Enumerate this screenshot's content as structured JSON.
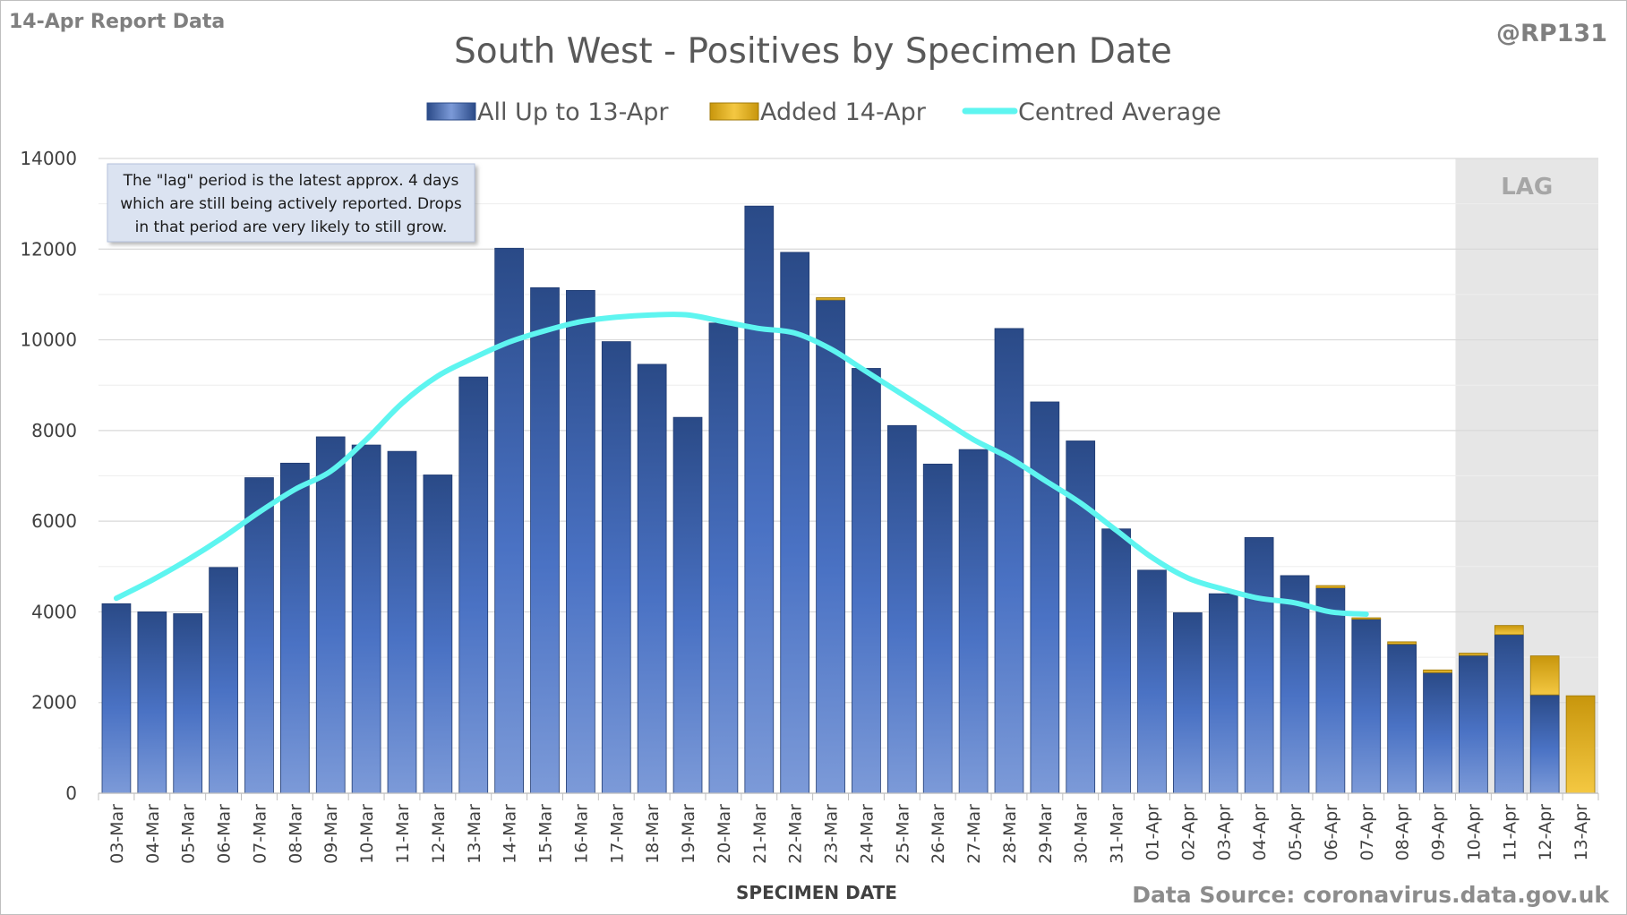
{
  "header": {
    "report_label": "14-Apr Report Data",
    "handle": "@RP131"
  },
  "footer": {
    "source": "Data Source: coronavirus.data.gov.uk"
  },
  "annotation": {
    "lines": [
      "The \"lag\" period is the latest approx. 4 days",
      "which are still being actively reported.  Drops",
      "in that period are very likely to still grow."
    ]
  },
  "lag_label": "LAG",
  "colors": {
    "bar_top": "#2a4a87",
    "bar_bottom": "#7c9ad8",
    "added_top": "#c8960c",
    "added_bottom": "#f4c842",
    "average_line": "#5ef5f0",
    "lag_band": "#e6e6e6",
    "grid": "#d9d9d9"
  },
  "chart_data": {
    "type": "bar",
    "title": "South West - Positives by Specimen Date",
    "xlabel": "SPECIMEN DATE",
    "ylabel": "",
    "ylim": [
      0,
      14000
    ],
    "yticks": [
      0,
      2000,
      4000,
      6000,
      8000,
      10000,
      12000,
      14000
    ],
    "grid": true,
    "legend_position": "top-center",
    "stacked": true,
    "categories": [
      "03-Mar",
      "04-Mar",
      "05-Mar",
      "06-Mar",
      "07-Mar",
      "08-Mar",
      "09-Mar",
      "10-Mar",
      "11-Mar",
      "12-Mar",
      "13-Mar",
      "14-Mar",
      "15-Mar",
      "16-Mar",
      "17-Mar",
      "18-Mar",
      "19-Mar",
      "20-Mar",
      "21-Mar",
      "22-Mar",
      "23-Mar",
      "24-Mar",
      "25-Mar",
      "26-Mar",
      "27-Mar",
      "28-Mar",
      "29-Mar",
      "30-Mar",
      "31-Mar",
      "01-Apr",
      "02-Apr",
      "03-Apr",
      "04-Apr",
      "05-Apr",
      "06-Apr",
      "07-Apr",
      "08-Apr",
      "09-Apr",
      "10-Apr",
      "11-Apr",
      "12-Apr",
      "13-Apr"
    ],
    "lag_categories": [
      "10-Apr",
      "11-Apr",
      "12-Apr",
      "13-Apr"
    ],
    "series": [
      {
        "name": "All Up to 13-Apr",
        "kind": "bar",
        "values": [
          4180,
          4000,
          3960,
          4980,
          6960,
          7280,
          7860,
          7680,
          7540,
          7020,
          9180,
          12020,
          11150,
          11090,
          9960,
          9460,
          8290,
          10370,
          12950,
          11930,
          10880,
          9370,
          8110,
          7260,
          7580,
          10250,
          8630,
          7770,
          5830,
          4920,
          3980,
          4400,
          5640,
          4800,
          4530,
          3840,
          3290,
          2660,
          3040,
          3500,
          2170,
          0
        ]
      },
      {
        "name": "Added 14-Apr",
        "kind": "bar",
        "values": [
          0,
          0,
          0,
          0,
          0,
          0,
          0,
          0,
          0,
          0,
          0,
          0,
          0,
          0,
          0,
          0,
          0,
          0,
          0,
          0,
          50,
          0,
          0,
          0,
          0,
          0,
          0,
          0,
          0,
          0,
          0,
          0,
          0,
          0,
          50,
          30,
          50,
          60,
          50,
          200,
          860,
          2150
        ]
      },
      {
        "name": "Centred Average",
        "kind": "line",
        "values": [
          4300,
          4700,
          5150,
          5650,
          6200,
          6700,
          7100,
          7800,
          8600,
          9200,
          9600,
          9950,
          10200,
          10400,
          10500,
          10550,
          10550,
          10400,
          10250,
          10150,
          9800,
          9300,
          8800,
          8300,
          7800,
          7400,
          6900,
          6400,
          5800,
          5200,
          4750,
          4500,
          4300,
          4200,
          4000,
          3950,
          null,
          null,
          null,
          null,
          null,
          null
        ]
      }
    ]
  }
}
